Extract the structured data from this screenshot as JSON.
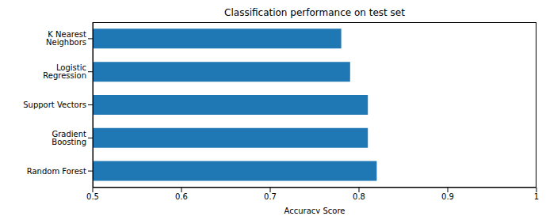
{
  "chart_data": {
    "type": "bar",
    "title": "Classification performance on test set",
    "orientation": "horizontal",
    "categories": [
      "K Nearest Neighbors",
      "Logistic Regression",
      "Support Vectors",
      "Gradient Boosting",
      "Random Forest"
    ],
    "values": [
      0.78,
      0.79,
      0.81,
      0.81,
      0.82
    ],
    "color": "#1f77b4",
    "x_label": "Accuracy Score",
    "xlim": [
      0.5,
      1.0
    ],
    "xticks": [
      0.5,
      0.6,
      0.7,
      0.8,
      0.9,
      1.0
    ],
    "grid": false
  }
}
